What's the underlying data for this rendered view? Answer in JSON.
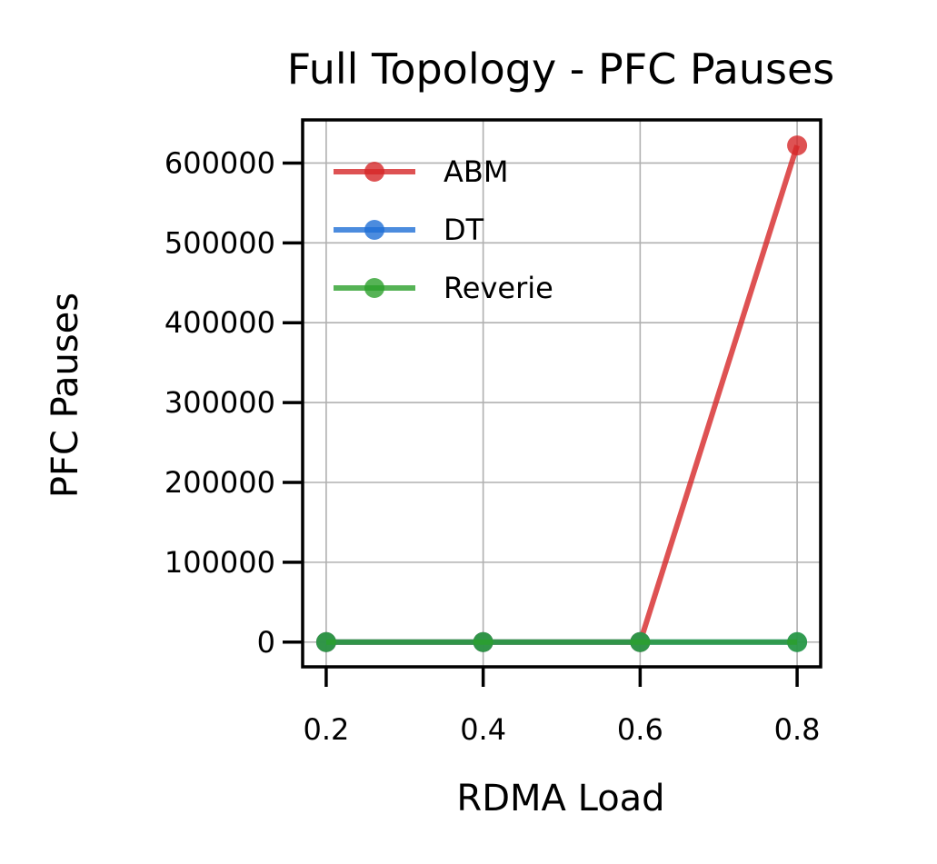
{
  "chart_data": {
    "type": "line",
    "title": "Full Topology - PFC Pauses",
    "xlabel": "RDMA Load",
    "ylabel": "PFC Pauses",
    "x": [
      0.2,
      0.4,
      0.6,
      0.8
    ],
    "x_ticks": [
      "0.2",
      "0.4",
      "0.6",
      "0.8"
    ],
    "y_ticks": [
      "0",
      "100000",
      "200000",
      "300000",
      "400000",
      "500000",
      "600000"
    ],
    "y_tick_values": [
      0,
      100000,
      200000,
      300000,
      400000,
      500000,
      600000
    ],
    "xlim": [
      0.17,
      0.83
    ],
    "ylim": [
      -31000,
      654000
    ],
    "grid": true,
    "legend_position": "top-left",
    "series": [
      {
        "name": "ABM",
        "color": "#d62728",
        "values": [
          0,
          0,
          0,
          622000
        ]
      },
      {
        "name": "DT",
        "color": "#1f6fd6",
        "values": [
          0,
          0,
          0,
          0
        ]
      },
      {
        "name": "Reverie",
        "color": "#2ca02c",
        "values": [
          0,
          0,
          0,
          0
        ]
      }
    ]
  }
}
